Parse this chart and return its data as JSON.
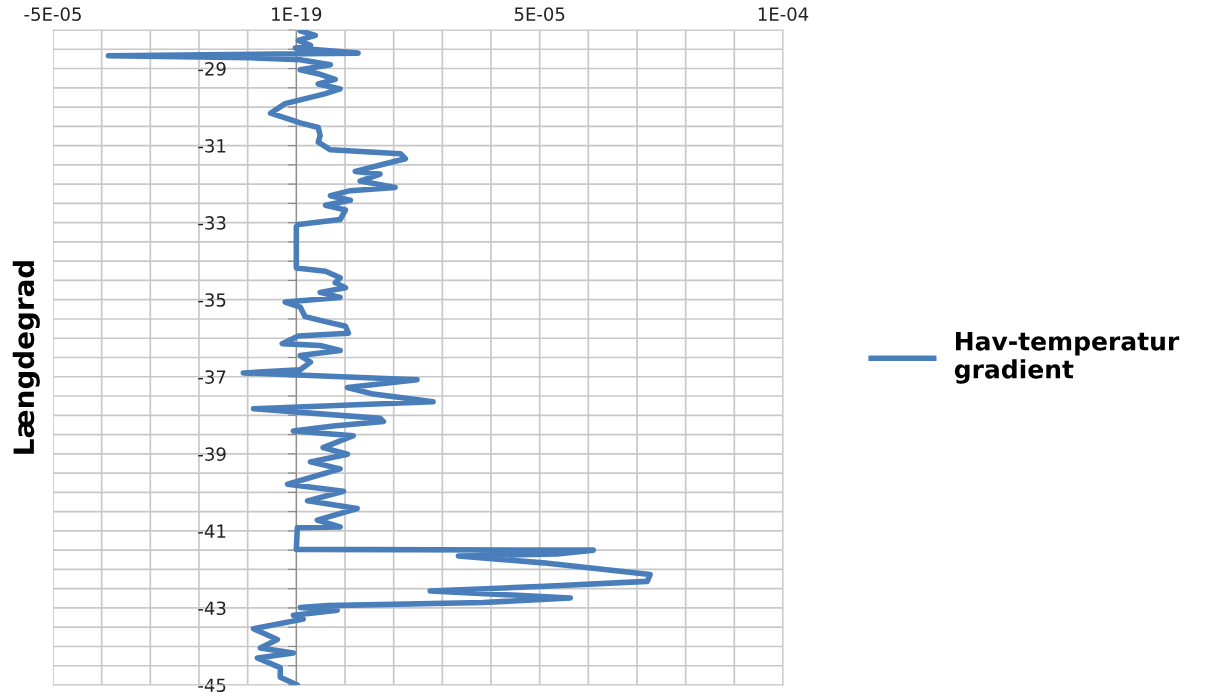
{
  "chart_data": {
    "type": "line",
    "ylabel": "Længdegrad",
    "xlim": [
      -5e-05,
      0.0001
    ],
    "ylim": [
      -45,
      -28
    ],
    "xticks": [
      {
        "value": -5e-05,
        "label": "-5E-05"
      },
      {
        "value": -4e-05,
        "label": null
      },
      {
        "value": -3e-05,
        "label": null
      },
      {
        "value": -2e-05,
        "label": null
      },
      {
        "value": -1e-05,
        "label": null
      },
      {
        "value": 0,
        "label": "1E-19"
      },
      {
        "value": 1e-05,
        "label": null
      },
      {
        "value": 2e-05,
        "label": null
      },
      {
        "value": 3e-05,
        "label": null
      },
      {
        "value": 4e-05,
        "label": null
      },
      {
        "value": 5e-05,
        "label": "5E-05"
      },
      {
        "value": 6e-05,
        "label": null
      },
      {
        "value": 7e-05,
        "label": null
      },
      {
        "value": 8e-05,
        "label": null
      },
      {
        "value": 9e-05,
        "label": null
      },
      {
        "value": 0.0001,
        "label": "1E-04"
      }
    ],
    "yticks": [
      {
        "value": -28,
        "label": null
      },
      {
        "value": -28.5,
        "label": null
      },
      -29,
      {
        "value": -29.5,
        "label": null
      },
      {
        "value": -30,
        "label": null
      },
      {
        "value": -30.5,
        "label": null
      },
      -31,
      {
        "value": -31.5,
        "label": null
      },
      {
        "value": -32,
        "label": null
      },
      {
        "value": -32.5,
        "label": null
      },
      -33,
      {
        "value": -33.5,
        "label": null
      },
      {
        "value": -34,
        "label": null
      },
      {
        "value": -34.5,
        "label": null
      },
      -35,
      {
        "value": -35.5,
        "label": null
      },
      {
        "value": -36,
        "label": null
      },
      {
        "value": -36.5,
        "label": null
      },
      -37,
      {
        "value": -37.5,
        "label": null
      },
      {
        "value": -38,
        "label": null
      },
      {
        "value": -38.5,
        "label": null
      },
      -39,
      {
        "value": -39.5,
        "label": null
      },
      {
        "value": -40,
        "label": null
      },
      {
        "value": -40.5,
        "label": null
      },
      -41,
      {
        "value": -41.5,
        "label": null
      },
      {
        "value": -42,
        "label": null
      },
      {
        "value": -42.5,
        "label": null
      },
      -43,
      {
        "value": -43.5,
        "label": null
      },
      {
        "value": -44,
        "label": null
      },
      {
        "value": -44.5,
        "label": null
      },
      -45
    ],
    "grid": true,
    "legend": "right",
    "series": [
      {
        "name": "Hav-temperatur\ngradient",
        "color": "#4a7ebb",
        "x": [
          8e-07,
          3.9e-06,
          4e-07,
          2.9e-06,
          -2e-07,
          1.27e-05,
          -3.86e-05,
          -9.4e-06,
          8e-07,
          7e-06,
          8e-07,
          4.9e-06,
          8e-06,
          4.5e-06,
          9e-06,
          6e-06,
          -2.3e-06,
          -5.3e-06,
          -2.3e-06,
          8e-07,
          4.5e-06,
          4.9e-06,
          4.5e-06,
          7e-06,
          2.14e-05,
          2.24e-05,
          1.93e-05,
          1.21e-05,
          1.72e-05,
          1.31e-05,
          2.03e-05,
          1.11e-05,
          7e-06,
          1.11e-05,
          6e-06,
          1.01e-05,
          9e-06,
          4e-07,
          0,
          0,
          6e-06,
          9e-06,
          8e-06,
          1.01e-05,
          4.9e-06,
          9e-06,
          -2.3e-06,
          8e-07,
          1.8e-06,
          6e-06,
          1.01e-05,
          1.07e-05,
          4e-07,
          -2.9e-06,
          4.9e-06,
          9e-06,
          8e-07,
          2.9e-06,
          8e-07,
          -1.09e-05,
          2.48e-05,
          1.05e-05,
          1.58e-05,
          2.81e-05,
          -8.8e-06,
          1.72e-05,
          1.79e-05,
          7.6e-06,
          -6e-07,
          1.17e-05,
          5.5e-06,
          1.05e-05,
          2.9e-06,
          9e-06,
          -1.8e-06,
          9.7e-06,
          2.3e-06,
          1.25e-05,
          4.3e-06,
          9e-06,
          2e-07,
          0,
          6.1e-05,
          5.36e-05,
          3.33e-05,
          5.07e-05,
          7.27e-05,
          7.21e-05,
          5.22e-05,
          2.75e-05,
          5.63e-05,
          3.84e-05,
          6.4e-06,
          8e-07,
          8.4e-06,
          -6e-07,
          1.4e-06,
          -8.8e-06,
          -3.9e-06,
          -7.4e-06,
          -6e-07,
          -8e-06,
          -3.3e-06,
          -3.3e-06,
          2e-07
        ],
        "values": [
          -28.02,
          -28.14,
          -28.27,
          -28.4,
          -28.47,
          -28.6,
          -28.67,
          -28.72,
          -28.77,
          -28.9,
          -29.03,
          -29.15,
          -29.28,
          -29.4,
          -29.53,
          -29.65,
          -29.91,
          -30.16,
          -30.28,
          -30.41,
          -30.53,
          -30.74,
          -30.91,
          -31.11,
          -31.21,
          -31.34,
          -31.44,
          -31.67,
          -31.74,
          -31.92,
          -32.09,
          -32.17,
          -32.3,
          -32.42,
          -32.55,
          -32.67,
          -32.92,
          -33.05,
          -33.1,
          -34.18,
          -34.26,
          -34.43,
          -34.56,
          -34.69,
          -34.81,
          -34.94,
          -35.06,
          -35.19,
          -35.44,
          -35.57,
          -35.69,
          -35.87,
          -35.94,
          -36.14,
          -36.19,
          -36.32,
          -36.45,
          -36.62,
          -36.82,
          -36.9,
          -37.08,
          -37.28,
          -37.45,
          -37.65,
          -37.83,
          -38.08,
          -38.16,
          -38.28,
          -38.41,
          -38.53,
          -38.84,
          -39.01,
          -39.21,
          -39.39,
          -39.79,
          -39.97,
          -40.22,
          -40.42,
          -40.72,
          -40.9,
          -40.92,
          -41.48,
          -41.5,
          -41.6,
          -41.65,
          -41.83,
          -42.13,
          -42.31,
          -42.43,
          -42.56,
          -42.74,
          -42.86,
          -42.94,
          -42.99,
          -43.06,
          -43.19,
          -43.29,
          -43.54,
          -43.82,
          -44.04,
          -44.17,
          -44.3,
          -44.55,
          -44.8,
          -45.0
        ]
      }
    ]
  }
}
